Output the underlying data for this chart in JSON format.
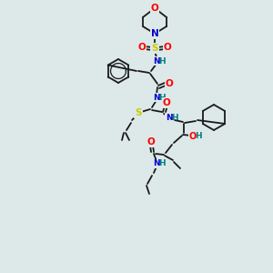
{
  "background_color": "#dde8e8",
  "bond_color": "#1a1a1a",
  "atom_colors": {
    "O": "#ff0000",
    "N": "#0000cc",
    "S": "#cccc00",
    "H": "#008080",
    "C": "#1a1a1a"
  },
  "figsize": [
    3.0,
    3.0
  ],
  "dpi": 100
}
